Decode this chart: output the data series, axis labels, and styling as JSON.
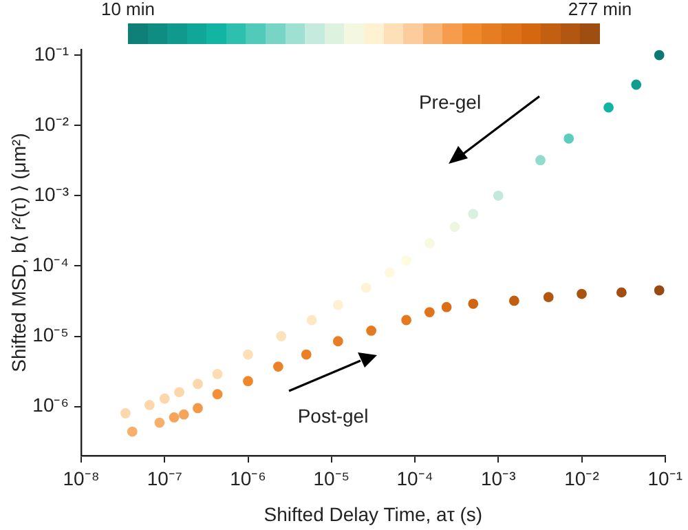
{
  "chart_data": {
    "type": "scatter",
    "xlabel": "Shifted Delay Time, aτ (s)",
    "ylabel": "Shifted MSD, b⟨ r²(τ) ⟩ (μm²)",
    "log": "xy",
    "xlim": [
      1e-08,
      0.1
    ],
    "ylim": [
      2e-07,
      0.12
    ],
    "xticks": [
      {
        "value": 1e-08,
        "label": "10⁻⁸"
      },
      {
        "value": 1e-07,
        "label": "10⁻⁷"
      },
      {
        "value": 1e-06,
        "label": "10⁻⁶"
      },
      {
        "value": 1e-05,
        "label": "10⁻⁵"
      },
      {
        "value": 0.0001,
        "label": "10⁻⁴"
      },
      {
        "value": 0.001,
        "label": "10⁻³"
      },
      {
        "value": 0.01,
        "label": "10⁻²"
      },
      {
        "value": 0.1,
        "label": "10⁻¹"
      }
    ],
    "yticks": [
      {
        "value": 1e-06,
        "label": "10⁻⁶"
      },
      {
        "value": 1e-05,
        "label": "10⁻⁵"
      },
      {
        "value": 0.0001,
        "label": "10⁻⁴"
      },
      {
        "value": 0.001,
        "label": "10⁻³"
      },
      {
        "value": 0.01,
        "label": "10⁻²"
      },
      {
        "value": 0.1,
        "label": "10⁻¹"
      }
    ],
    "clim": [
      10,
      277
    ],
    "cticks": [
      {
        "value": 10,
        "label": "10 min"
      },
      {
        "value": 277,
        "label": "277 min"
      }
    ],
    "grid": false,
    "legend": false,
    "marker": "circle",
    "annotations": [
      "Pre-gel",
      "Post-gel"
    ],
    "series": [
      {
        "x": [
          3.4e-08,
          6.6e-08,
          1e-07,
          1.5e-07,
          2.5e-07,
          4.3e-07,
          1e-06,
          2.5e-06,
          5.8e-06,
          1.2e-05,
          2.6e-05,
          5e-05,
          7.9e-05,
          0.00015,
          0.0003,
          0.0005,
          0.001,
          0.0032,
          0.007,
          0.021,
          0.045,
          0.085
        ],
        "values": [
          8e-07,
          1.05e-06,
          1.3e-06,
          1.6e-06,
          2.1e-06,
          2.9e-06,
          5.5e-06,
          1e-05,
          1.7e-05,
          2.8e-05,
          4.9e-05,
          8e-05,
          0.00012,
          0.00021,
          0.00036,
          0.00055,
          0.001,
          0.0032,
          0.0065,
          0.018,
          0.038,
          0.1
        ],
        "cvalues": [
          165,
          165,
          165,
          165,
          165,
          162,
          160,
          158,
          155,
          150,
          148,
          145,
          143,
          140,
          135,
          125,
          115,
          100,
          85,
          60,
          40,
          10
        ],
        "colors": [
          "#fdd7ac",
          "#fdd7ac",
          "#fdd7ac",
          "#fdd7ac",
          "#fdd7ac",
          "#fddcb4",
          "#fddfb8",
          "#fde3bd",
          "#fee8c4",
          "#fef0d0",
          "#fef3d5",
          "#fff8dc",
          "#fefbe0",
          "#f8f9e0",
          "#eef6df",
          "#d9f1df",
          "#c2eadc",
          "#8fdccc",
          "#5ccdbd",
          "#12b4a3",
          "#109d8f",
          "#0d7a72"
        ]
      },
      {
        "x": [
          4.1e-08,
          8.7e-08,
          1.3e-07,
          1.7e-07,
          2.5e-07,
          4.3e-07,
          1e-06,
          2.3e-06,
          5e-06,
          1.2e-05,
          3e-05,
          7.9e-05,
          0.00015,
          0.00024,
          0.0005,
          0.00155,
          0.004,
          0.01,
          0.03,
          0.085
        ],
        "values": [
          4.4e-07,
          5.9e-07,
          7e-07,
          7.7e-07,
          9.5e-07,
          1.5e-06,
          2.3e-06,
          3.7e-06,
          5.5e-06,
          8.5e-06,
          1.2e-05,
          1.7e-05,
          2.2e-05,
          2.6e-05,
          2.9e-05,
          3.2e-05,
          3.6e-05,
          4e-05,
          4.2e-05,
          4.5e-05
        ],
        "cvalues": [
          185,
          185,
          190,
          190,
          195,
          200,
          205,
          210,
          212,
          215,
          218,
          220,
          225,
          230,
          240,
          250,
          260,
          265,
          270,
          277
        ],
        "colors": [
          "#f7af6b",
          "#f7af6b",
          "#f6a45a",
          "#f6a45a",
          "#f49948",
          "#f38f36",
          "#f0872c",
          "#ec8227",
          "#ea8026",
          "#e87d23",
          "#e57b20",
          "#e4791f",
          "#e0741a",
          "#dc6f16",
          "#d16610",
          "#c15e11",
          "#b15711",
          "#a95311",
          "#a14f12",
          "#964a12"
        ]
      }
    ]
  }
}
